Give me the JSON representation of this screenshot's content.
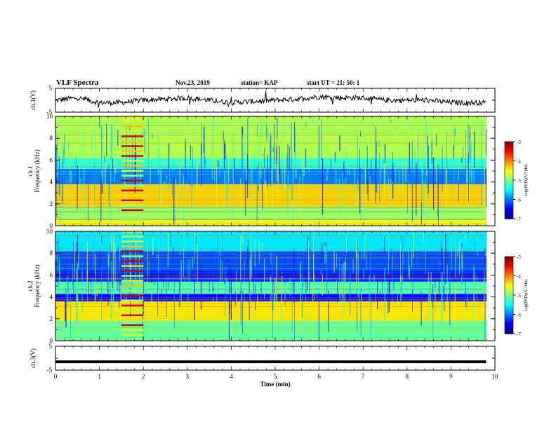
{
  "header": {
    "title": "VLF Spectra",
    "date": "Nov.23, 2019",
    "station": "station= KAP",
    "start": "start  UT =   21: 50: 1"
  },
  "chart_data": [
    {
      "type": "line",
      "panel": "ch1-waveform",
      "ylabel": "ch.1(V)",
      "ylim": [
        -5,
        5
      ],
      "yticklabels": [
        "5",
        "-5"
      ],
      "xlim": [
        0,
        10
      ],
      "line_color": "#000000",
      "x": [
        0,
        0.5,
        1,
        1.5,
        2,
        2.5,
        3,
        3.5,
        4,
        4.5,
        5,
        5.5,
        6,
        6.5,
        7,
        7.5,
        8,
        8.5,
        9,
        9.5,
        9.8
      ],
      "y": [
        0,
        1,
        -1,
        -1,
        0,
        0.5,
        1,
        0,
        -1,
        -0.5,
        0,
        0.5,
        1.5,
        1,
        1,
        0,
        0,
        0,
        -1,
        -1,
        -1
      ]
    },
    {
      "type": "heatmap",
      "panel": "ch1-spectrogram",
      "ylabel": "ch.1\nFrequency (kHz)",
      "ylim": [
        0,
        10
      ],
      "yticklabels": [
        "0",
        "2",
        "4",
        "6",
        "8",
        "10"
      ],
      "xlim": [
        0,
        10
      ],
      "colorbar": {
        "label": "log(PSD)(V²/Hz)",
        "range": [
          -7,
          -3
        ],
        "ticklabels": [
          "-3",
          "-4",
          "-5",
          "-6",
          "-7"
        ]
      },
      "bands_kHz": [
        {
          "from": 0,
          "to": 0.5,
          "level": -4.6
        },
        {
          "from": 0.5,
          "to": 1.8,
          "level": -4.9
        },
        {
          "from": 1.8,
          "to": 3.8,
          "level": -4.3
        },
        {
          "from": 3.8,
          "to": 5.2,
          "level": -6.0
        },
        {
          "from": 5.2,
          "to": 6.2,
          "level": -5.3
        },
        {
          "from": 6.2,
          "to": 10,
          "level": -4.8
        }
      ],
      "burst_minutes": [
        1.5,
        2.0
      ]
    },
    {
      "type": "heatmap",
      "panel": "ch2-spectrogram",
      "ylabel": "ch.2\nFrequency (kHz)",
      "ylim": [
        0,
        10
      ],
      "yticklabels": [
        "0",
        "2",
        "4",
        "6",
        "8",
        "10"
      ],
      "xlim": [
        0,
        10
      ],
      "colorbar": {
        "label": "log(PSD)(V²/Hz)",
        "range": [
          -7,
          -3
        ],
        "ticklabels": [
          "-3",
          "-4",
          "-5",
          "-6",
          "-7"
        ]
      },
      "bands_kHz": [
        {
          "from": 0,
          "to": 1.8,
          "level": -5.1
        },
        {
          "from": 1.8,
          "to": 3.6,
          "level": -4.4
        },
        {
          "from": 3.6,
          "to": 4.3,
          "level": -6.5
        },
        {
          "from": 4.3,
          "to": 5.4,
          "level": -5.2
        },
        {
          "from": 5.4,
          "to": 6.4,
          "level": -6.4
        },
        {
          "from": 6.4,
          "to": 8.2,
          "level": -6.2
        },
        {
          "from": 8.2,
          "to": 10,
          "level": -5.6
        }
      ],
      "burst_minutes": [
        1.5,
        2.0
      ]
    },
    {
      "type": "line",
      "panel": "ch3-waveform",
      "ylabel": "ch.3(V)",
      "ylim": [
        -5,
        5
      ],
      "yticklabels": [
        "5",
        "-5"
      ],
      "xlabel": "Time (min)",
      "xlim": [
        0,
        10
      ],
      "xticklabels": [
        "0",
        "1",
        "2",
        "3",
        "4",
        "5",
        "6",
        "7",
        "8",
        "9",
        "10"
      ],
      "x": [
        0,
        9.8
      ],
      "y": [
        -1.5,
        -1.5
      ]
    }
  ]
}
